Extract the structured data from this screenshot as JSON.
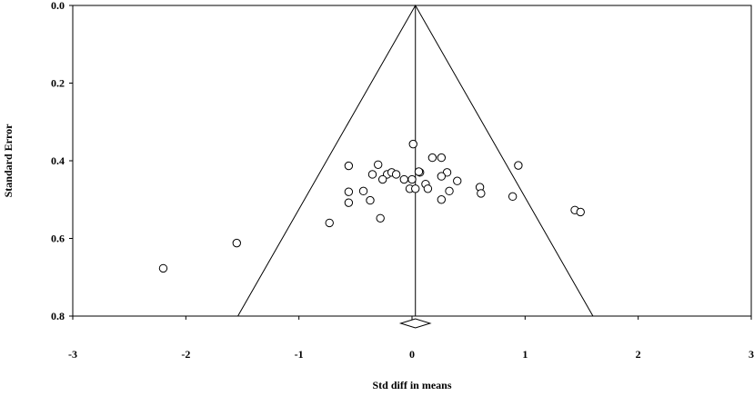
{
  "chart_data": {
    "type": "scatter",
    "title": "",
    "xlabel": "Std diff in means",
    "ylabel": "Standard Error",
    "xlim": [
      -3,
      3
    ],
    "ylim": [
      0,
      0.8
    ],
    "y_inverted": true,
    "grid": false,
    "x_ticks": [
      "-3",
      "-2",
      "-1",
      "0",
      "1",
      "2",
      "3"
    ],
    "y_ticks": [
      "0.0",
      "0.2",
      "0.4",
      "0.6",
      "0.8"
    ],
    "funnel": {
      "apex": [
        0.03,
        0.0
      ],
      "base_left": [
        -1.54,
        0.8
      ],
      "base_right": [
        1.6,
        0.8
      ],
      "center_x": 0.03
    },
    "summary_diamond": {
      "center": 0.03,
      "lower": -0.1,
      "upper": 0.16
    },
    "points": [
      {
        "x": 0.01,
        "y": 0.357
      },
      {
        "x": -0.56,
        "y": 0.413
      },
      {
        "x": -0.3,
        "y": 0.41
      },
      {
        "x": -0.22,
        "y": 0.435
      },
      {
        "x": -0.18,
        "y": 0.43
      },
      {
        "x": -0.14,
        "y": 0.435
      },
      {
        "x": -0.35,
        "y": 0.435
      },
      {
        "x": -0.26,
        "y": 0.448
      },
      {
        "x": -0.07,
        "y": 0.448
      },
      {
        "x": 0.0,
        "y": 0.448
      },
      {
        "x": 0.07,
        "y": 0.43
      },
      {
        "x": 0.06,
        "y": 0.428
      },
      {
        "x": 0.18,
        "y": 0.392
      },
      {
        "x": 0.26,
        "y": 0.392
      },
      {
        "x": 0.31,
        "y": 0.43
      },
      {
        "x": 0.26,
        "y": 0.44
      },
      {
        "x": 0.12,
        "y": 0.46
      },
      {
        "x": 0.4,
        "y": 0.452
      },
      {
        "x": 0.14,
        "y": 0.472
      },
      {
        "x": 0.33,
        "y": 0.478
      },
      {
        "x": -0.02,
        "y": 0.472
      },
      {
        "x": 0.03,
        "y": 0.472
      },
      {
        "x": -0.56,
        "y": 0.48
      },
      {
        "x": -0.43,
        "y": 0.478
      },
      {
        "x": -0.37,
        "y": 0.502
      },
      {
        "x": -0.56,
        "y": 0.508
      },
      {
        "x": 0.26,
        "y": 0.5
      },
      {
        "x": 0.6,
        "y": 0.468
      },
      {
        "x": 0.61,
        "y": 0.484
      },
      {
        "x": 0.89,
        "y": 0.492
      },
      {
        "x": 0.94,
        "y": 0.412
      },
      {
        "x": -0.28,
        "y": 0.548
      },
      {
        "x": -0.73,
        "y": 0.56
      },
      {
        "x": 1.44,
        "y": 0.527
      },
      {
        "x": 1.49,
        "y": 0.532
      },
      {
        "x": -1.55,
        "y": 0.612
      },
      {
        "x": -2.2,
        "y": 0.677
      }
    ]
  }
}
